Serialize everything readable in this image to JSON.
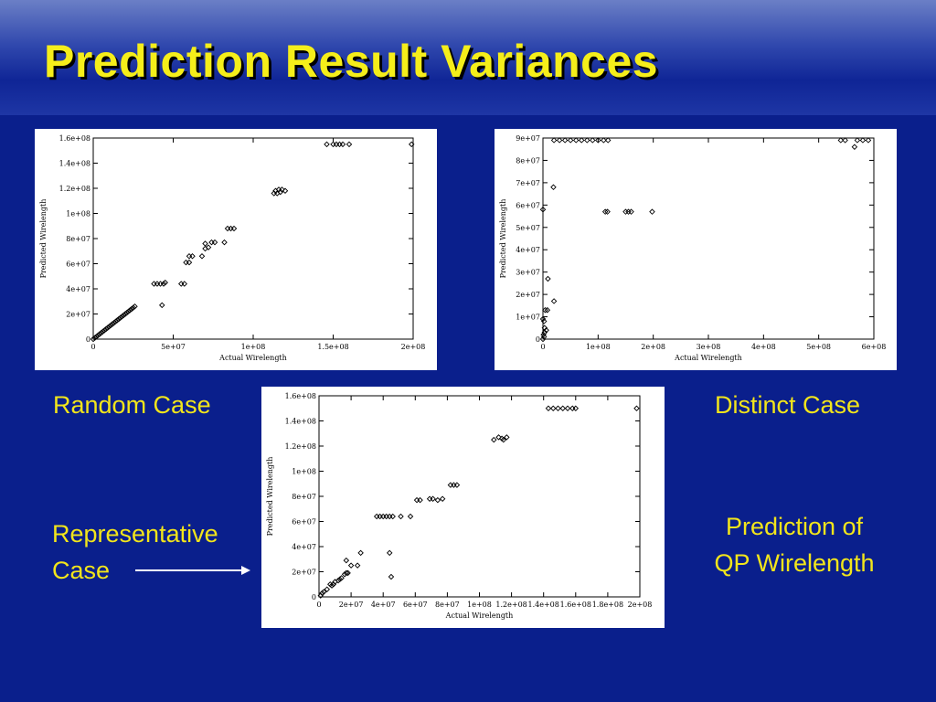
{
  "slide": {
    "title": "Prediction Result Variances",
    "labels": {
      "random": "Random Case",
      "distinct": "Distinct Case",
      "representative_line1": "Representative",
      "representative_line2": "Case",
      "prediction_line1": "Prediction of",
      "prediction_line2": "QP Wirelength"
    },
    "colors": {
      "background": "#0a1f8c",
      "title": "#f5ee1a",
      "label": "#f2e51b"
    }
  },
  "chart_data": [
    {
      "type": "scatter",
      "name": "Random Case",
      "xlabel": "Actual Wirelength",
      "ylabel": "Predicted Wirelength",
      "xlim": [
        0,
        200000000
      ],
      "ylim": [
        0,
        160000000
      ],
      "xticks": [
        0,
        50000000,
        100000000,
        150000000,
        200000000
      ],
      "xtick_labels": [
        "0",
        "5e+07",
        "1e+08",
        "1.5e+08",
        "2e+08"
      ],
      "yticks": [
        0,
        20000000,
        40000000,
        60000000,
        80000000,
        100000000,
        120000000,
        140000000,
        160000000
      ],
      "ytick_labels": [
        "0",
        "2e+07",
        "4e+07",
        "6e+07",
        "8e+07",
        "1e+08",
        "1.2e+08",
        "1.4e+08",
        "1.6e+08"
      ],
      "points": [
        [
          0,
          0
        ],
        [
          1000000,
          1000000
        ],
        [
          2000000,
          2000000
        ],
        [
          3000000,
          3000000
        ],
        [
          4000000,
          4000000
        ],
        [
          5000000,
          5000000
        ],
        [
          6000000,
          6000000
        ],
        [
          7000000,
          7000000
        ],
        [
          8000000,
          8000000
        ],
        [
          9000000,
          9000000
        ],
        [
          10000000,
          10000000
        ],
        [
          11000000,
          11000000
        ],
        [
          12000000,
          12000000
        ],
        [
          13000000,
          13000000
        ],
        [
          14000000,
          14000000
        ],
        [
          15000000,
          15000000
        ],
        [
          16000000,
          16000000
        ],
        [
          17000000,
          17000000
        ],
        [
          18000000,
          18000000
        ],
        [
          19000000,
          19000000
        ],
        [
          20000000,
          20000000
        ],
        [
          21000000,
          21000000
        ],
        [
          22000000,
          22000000
        ],
        [
          23000000,
          23000000
        ],
        [
          24000000,
          24000000
        ],
        [
          25000000,
          25000000
        ],
        [
          26000000,
          26000000
        ],
        [
          38000000,
          44000000
        ],
        [
          40000000,
          44000000
        ],
        [
          42000000,
          44000000
        ],
        [
          44000000,
          44000000
        ],
        [
          45000000,
          45000000
        ],
        [
          43000000,
          27000000
        ],
        [
          55000000,
          44000000
        ],
        [
          57000000,
          44000000
        ],
        [
          58000000,
          61000000
        ],
        [
          60000000,
          61000000
        ],
        [
          60000000,
          66000000
        ],
        [
          62000000,
          66000000
        ],
        [
          68000000,
          66000000
        ],
        [
          70000000,
          72000000
        ],
        [
          70000000,
          76000000
        ],
        [
          72000000,
          73000000
        ],
        [
          74000000,
          77000000
        ],
        [
          76000000,
          77000000
        ],
        [
          82000000,
          77000000
        ],
        [
          84000000,
          88000000
        ],
        [
          86000000,
          88000000
        ],
        [
          88000000,
          88000000
        ],
        [
          113000000,
          116000000
        ],
        [
          114000000,
          118000000
        ],
        [
          115000000,
          116000000
        ],
        [
          116000000,
          119000000
        ],
        [
          117000000,
          117000000
        ],
        [
          118000000,
          119000000
        ],
        [
          120000000,
          118000000
        ],
        [
          146000000,
          155000000
        ],
        [
          150000000,
          155000000
        ],
        [
          152000000,
          155000000
        ],
        [
          154000000,
          155000000
        ],
        [
          156000000,
          155000000
        ],
        [
          160000000,
          155000000
        ],
        [
          199000000,
          155000000
        ]
      ]
    },
    {
      "type": "scatter",
      "name": "Distinct Case",
      "xlabel": "Actual Wirelength",
      "ylabel": "Predicted Wirelength",
      "xlim": [
        0,
        600000000
      ],
      "ylim": [
        0,
        90000000
      ],
      "xticks": [
        0,
        100000000,
        200000000,
        300000000,
        400000000,
        500000000,
        600000000
      ],
      "xtick_labels": [
        "0",
        "1e+08",
        "2e+08",
        "3e+08",
        "4e+08",
        "5e+08",
        "6e+08"
      ],
      "yticks": [
        0,
        10000000,
        20000000,
        30000000,
        40000000,
        50000000,
        60000000,
        70000000,
        80000000,
        90000000
      ],
      "ytick_labels": [
        "0",
        "1e+07",
        "2e+07",
        "3e+07",
        "4e+07",
        "5e+07",
        "6e+07",
        "7e+07",
        "8e+07",
        "9e+07"
      ],
      "points": [
        [
          0,
          0
        ],
        [
          1000000,
          2000000
        ],
        [
          2000000,
          1000000
        ],
        [
          3000000,
          5000000
        ],
        [
          0,
          9000000
        ],
        [
          2000000,
          8000000
        ],
        [
          4000000,
          13000000
        ],
        [
          8000000,
          13000000
        ],
        [
          3000000,
          3000000
        ],
        [
          6000000,
          4000000
        ],
        [
          9000000,
          27000000
        ],
        [
          20000000,
          17000000
        ],
        [
          19000000,
          68000000
        ],
        [
          0,
          58000000
        ],
        [
          20000000,
          89000000
        ],
        [
          30000000,
          89000000
        ],
        [
          40000000,
          89000000
        ],
        [
          50000000,
          89000000
        ],
        [
          60000000,
          89000000
        ],
        [
          70000000,
          89000000
        ],
        [
          80000000,
          89000000
        ],
        [
          90000000,
          89000000
        ],
        [
          100000000,
          89000000
        ],
        [
          110000000,
          89000000
        ],
        [
          118000000,
          89000000
        ],
        [
          113000000,
          57000000
        ],
        [
          117000000,
          57000000
        ],
        [
          150000000,
          57000000
        ],
        [
          155000000,
          57000000
        ],
        [
          160000000,
          57000000
        ],
        [
          198000000,
          57000000
        ],
        [
          540000000,
          89000000
        ],
        [
          548000000,
          89000000
        ],
        [
          565000000,
          86000000
        ],
        [
          570000000,
          89000000
        ],
        [
          580000000,
          89000000
        ],
        [
          590000000,
          89000000
        ]
      ]
    },
    {
      "type": "scatter",
      "name": "Representative Case",
      "xlabel": "Actual Wirelength",
      "ylabel": "Predicted Wirelength",
      "xlim": [
        0,
        200000000
      ],
      "ylim": [
        0,
        160000000
      ],
      "xticks": [
        0,
        20000000,
        40000000,
        60000000,
        80000000,
        100000000,
        120000000,
        140000000,
        160000000,
        180000000,
        200000000
      ],
      "xtick_labels": [
        "0",
        "2e+07",
        "4e+07",
        "6e+07",
        "8e+07",
        "1e+08",
        "1.2e+08",
        "1.4e+08",
        "1.6e+08",
        "1.8e+08",
        "2e+08"
      ],
      "yticks": [
        0,
        20000000,
        40000000,
        60000000,
        80000000,
        100000000,
        120000000,
        140000000,
        160000000
      ],
      "ytick_labels": [
        "0",
        "2e+07",
        "4e+07",
        "6e+07",
        "8e+07",
        "1e+08",
        "1.2e+08",
        "1.4e+08",
        "1.6e+08"
      ],
      "points": [
        [
          1000000,
          1000000
        ],
        [
          2000000,
          3000000
        ],
        [
          3000000,
          4000000
        ],
        [
          5000000,
          6000000
        ],
        [
          7000000,
          10000000
        ],
        [
          8000000,
          9000000
        ],
        [
          9000000,
          10000000
        ],
        [
          10000000,
          12000000
        ],
        [
          12000000,
          13000000
        ],
        [
          13000000,
          14000000
        ],
        [
          14000000,
          15000000
        ],
        [
          16000000,
          18000000
        ],
        [
          17000000,
          19000000
        ],
        [
          18000000,
          19000000
        ],
        [
          20000000,
          25000000
        ],
        [
          17000000,
          29000000
        ],
        [
          26000000,
          35000000
        ],
        [
          24000000,
          25000000
        ],
        [
          36000000,
          64000000
        ],
        [
          38000000,
          64000000
        ],
        [
          40000000,
          64000000
        ],
        [
          42000000,
          64000000
        ],
        [
          44000000,
          64000000
        ],
        [
          46000000,
          64000000
        ],
        [
          51000000,
          64000000
        ],
        [
          57000000,
          64000000
        ],
        [
          44000000,
          35000000
        ],
        [
          45000000,
          16000000
        ],
        [
          61000000,
          77000000
        ],
        [
          63000000,
          77000000
        ],
        [
          69000000,
          78000000
        ],
        [
          71000000,
          78000000
        ],
        [
          74000000,
          77000000
        ],
        [
          77000000,
          78000000
        ],
        [
          82000000,
          89000000
        ],
        [
          84000000,
          89000000
        ],
        [
          86000000,
          89000000
        ],
        [
          109000000,
          125000000
        ],
        [
          112000000,
          127000000
        ],
        [
          114000000,
          126000000
        ],
        [
          115000000,
          125000000
        ],
        [
          117000000,
          127000000
        ],
        [
          143000000,
          150000000
        ],
        [
          146000000,
          150000000
        ],
        [
          149000000,
          150000000
        ],
        [
          152000000,
          150000000
        ],
        [
          155000000,
          150000000
        ],
        [
          158000000,
          150000000
        ],
        [
          160000000,
          150000000
        ],
        [
          198000000,
          150000000
        ]
      ]
    }
  ]
}
